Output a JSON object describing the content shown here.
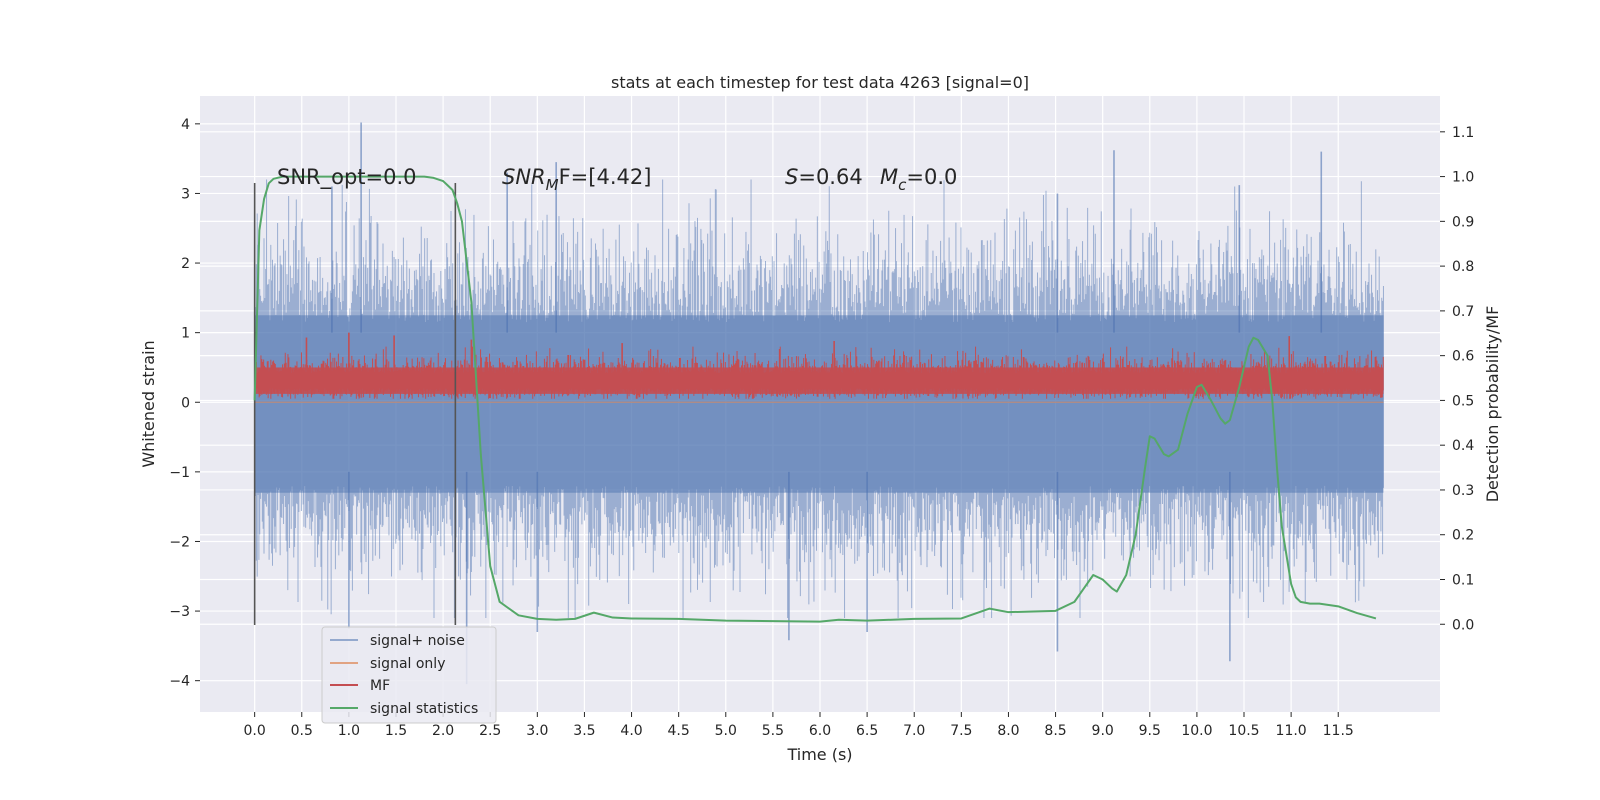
{
  "chart_data": {
    "type": "line",
    "title": "stats at each timestep for test data 4263 [signal=0]",
    "xlabel": "Time (s)",
    "ylabel": "Whitened strain",
    "y2label": "Detection probability/MF",
    "xlim": [
      -0.58,
      12.58
    ],
    "ylim": [
      -4.45,
      4.4
    ],
    "y2lim": [
      -0.196,
      1.18
    ],
    "x_ticks": [
      0.0,
      0.5,
      1.0,
      1.5,
      2.0,
      2.5,
      3.0,
      3.5,
      4.0,
      4.5,
      5.0,
      5.5,
      6.0,
      6.5,
      7.0,
      7.5,
      8.0,
      8.5,
      9.0,
      9.5,
      10.0,
      10.5,
      11.0,
      11.5
    ],
    "x_tick_labels": [
      "0.0",
      "0.5",
      "1.0",
      "1.5",
      "2.0",
      "2.5",
      "3.0",
      "3.5",
      "4.0",
      "4.5",
      "5.0",
      "5.5",
      "6.0",
      "6.5",
      "7.0",
      "7.5",
      "8.0",
      "8.5",
      "9.0",
      "9.5",
      "10.0",
      "10.5",
      "11.0",
      "11.5"
    ],
    "y_ticks": [
      -4,
      -3,
      -2,
      -1,
      0,
      1,
      2,
      3,
      4
    ],
    "y_tick_labels": [
      "−4",
      "−3",
      "−2",
      "−1",
      "0",
      "1",
      "2",
      "3",
      "4"
    ],
    "y2_ticks": [
      0.0,
      0.1,
      0.2,
      0.3,
      0.4,
      0.5,
      0.6,
      0.7,
      0.8,
      0.9,
      1.0,
      1.1
    ],
    "y2_tick_labels": [
      "0.0",
      "0.1",
      "0.2",
      "0.3",
      "0.4",
      "0.5",
      "0.6",
      "0.7",
      "0.8",
      "0.9",
      "1.0",
      "1.1"
    ],
    "grid": true,
    "legend_position": "lower-left",
    "annotations": {
      "snr_opt": "SNR_opt=0.0",
      "snr_mf_var": "SNR",
      "snr_mf_sub": "M",
      "snr_mf_rest": "F=[4.42]",
      "s_var": "S",
      "s_rest": "=0.64",
      "mc_var": "M",
      "mc_sub": "c",
      "mc_rest": "=0.0"
    },
    "vlines": [
      0.0,
      2.13
    ],
    "series": [
      {
        "name": "signal+ noise",
        "color": "#4c72b0",
        "axis": "left",
        "style": "noise",
        "x_range": [
          0.0,
          11.98
        ],
        "envelope_y": [
          -3.2,
          4.0
        ],
        "spikes": [
          [
            1.13,
            4.02
          ],
          [
            0.82,
            3.1
          ],
          [
            2.68,
            3.3
          ],
          [
            3.2,
            3.45
          ],
          [
            9.12,
            3.62
          ],
          [
            10.45,
            3.12
          ],
          [
            11.32,
            3.6
          ],
          [
            8.52,
            3.0
          ],
          [
            5.67,
            -3.42
          ],
          [
            8.52,
            -3.58
          ],
          [
            10.35,
            -3.72
          ],
          [
            1.0,
            -3.25
          ],
          [
            2.25,
            -4.05
          ],
          [
            3.0,
            -3.3
          ],
          [
            6.5,
            -3.3
          ]
        ]
      },
      {
        "name": "signal only",
        "color": "#dd8452",
        "axis": "left",
        "style": "line",
        "x": [
          0.0,
          11.98
        ],
        "y": [
          0.0,
          0.0
        ]
      },
      {
        "name": "MF",
        "color": "#c44e52",
        "axis": "left",
        "style": "band",
        "x_range": [
          0.0,
          11.98
        ],
        "band_y": [
          0.05,
          1.0
        ],
        "peaks": [
          [
            1.0,
            1.0
          ],
          [
            0.55,
            0.93
          ],
          [
            1.48,
            0.96
          ],
          [
            2.3,
            0.9
          ],
          [
            10.98,
            0.95
          ],
          [
            6.15,
            0.88
          ],
          [
            3.9,
            0.85
          ]
        ]
      },
      {
        "name": "signal statistics",
        "color": "#55a868",
        "axis": "right",
        "style": "line",
        "x": [
          0.0,
          0.05,
          0.1,
          0.15,
          0.2,
          0.3,
          0.5,
          1.0,
          1.5,
          1.8,
          1.9,
          2.0,
          2.05,
          2.1,
          2.15,
          2.2,
          2.3,
          2.35,
          2.4,
          2.5,
          2.6,
          2.8,
          3.0,
          3.2,
          3.4,
          3.6,
          3.8,
          4.0,
          4.5,
          5.0,
          5.5,
          6.0,
          6.2,
          6.5,
          7.0,
          7.5,
          7.8,
          8.0,
          8.5,
          8.7,
          8.8,
          8.9,
          9.0,
          9.1,
          9.15,
          9.25,
          9.35,
          9.45,
          9.5,
          9.55,
          9.65,
          9.7,
          9.8,
          9.9,
          10.0,
          10.05,
          10.15,
          10.25,
          10.3,
          10.35,
          10.45,
          10.55,
          10.6,
          10.65,
          10.75,
          10.8,
          10.85,
          10.9,
          11.0,
          11.05,
          11.1,
          11.2,
          11.3,
          11.5,
          11.7,
          11.9
        ],
        "y": [
          0.5,
          0.88,
          0.95,
          0.985,
          0.995,
          1.0,
          1.0,
          1.0,
          1.0,
          1.0,
          0.997,
          0.99,
          0.98,
          0.97,
          0.94,
          0.9,
          0.72,
          0.55,
          0.38,
          0.13,
          0.05,
          0.02,
          0.012,
          0.01,
          0.012,
          0.026,
          0.015,
          0.013,
          0.012,
          0.008,
          0.007,
          0.006,
          0.01,
          0.008,
          0.012,
          0.013,
          0.035,
          0.027,
          0.03,
          0.05,
          0.08,
          0.11,
          0.1,
          0.08,
          0.073,
          0.11,
          0.2,
          0.35,
          0.42,
          0.415,
          0.38,
          0.375,
          0.39,
          0.47,
          0.53,
          0.535,
          0.5,
          0.46,
          0.448,
          0.456,
          0.53,
          0.62,
          0.64,
          0.635,
          0.6,
          0.5,
          0.35,
          0.22,
          0.09,
          0.06,
          0.05,
          0.046,
          0.046,
          0.04,
          0.025,
          0.013
        ]
      }
    ]
  }
}
